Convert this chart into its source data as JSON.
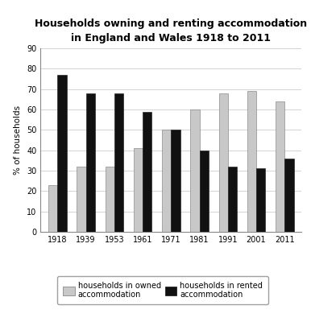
{
  "title_line1": "Households owning and renting accommodation",
  "title_line2": "in England and Wales 1918 to 2011",
  "years": [
    "1918",
    "1939",
    "1953",
    "1961",
    "1971",
    "1981",
    "1991",
    "2001",
    "2011"
  ],
  "owned": [
    23,
    32,
    32,
    41,
    50,
    60,
    68,
    69,
    64
  ],
  "rented": [
    77,
    68,
    68,
    59,
    50,
    40,
    32,
    31,
    36
  ],
  "owned_color": "#c8c8c8",
  "rented_color": "#111111",
  "ylabel": "% of households",
  "ylim": [
    0,
    90
  ],
  "yticks": [
    0,
    10,
    20,
    30,
    40,
    50,
    60,
    70,
    80,
    90
  ],
  "legend_owned": "households in owned\naccommodation",
  "legend_rented": "households in rented\naccommodation",
  "bar_width": 0.32,
  "title_fontsize": 9,
  "axis_fontsize": 7.5,
  "tick_fontsize": 7,
  "legend_fontsize": 7,
  "background_color": "#ffffff"
}
